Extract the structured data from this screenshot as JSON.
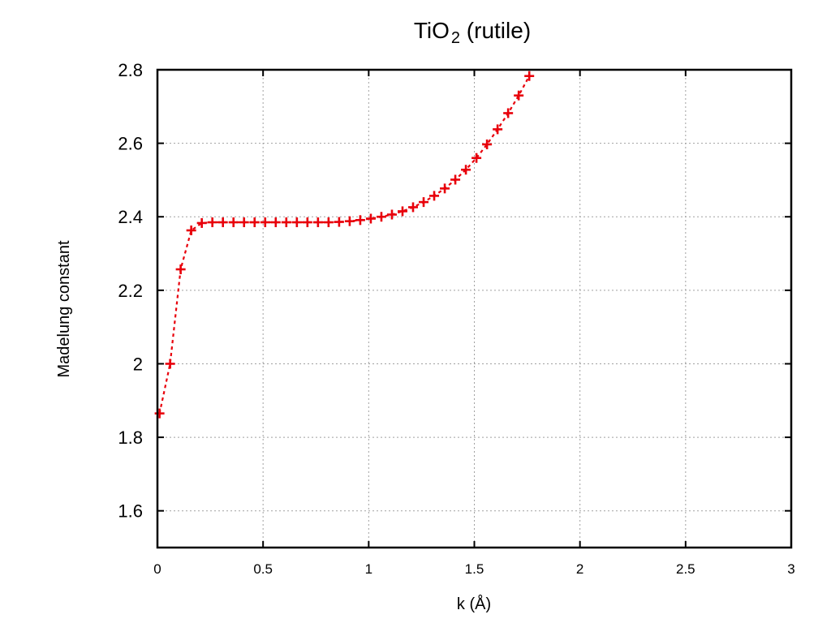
{
  "chart_data": {
    "type": "line",
    "title": {
      "main": "TiO",
      "subscript": "2",
      "suffix": " (rutile)"
    },
    "xlabel": "k (Å)",
    "ylabel": "Madelung constant",
    "xlim": [
      0,
      3
    ],
    "ylim": [
      1.5,
      2.8
    ],
    "xticks": [
      0,
      0.5,
      1,
      1.5,
      2,
      2.5,
      3
    ],
    "xtick_labels": [
      "0",
      "0.5",
      "1",
      "1.5",
      "2",
      "2.5",
      "3"
    ],
    "yticks": [
      1.6,
      1.8,
      2.0,
      2.2,
      2.4,
      2.6,
      2.8
    ],
    "ytick_labels": [
      "1.6",
      "1.8",
      "2",
      "2.2",
      "2.4",
      "2.6",
      "2.8"
    ],
    "grid": true,
    "series_color": "#e8000b",
    "series": [
      {
        "marker": "plus",
        "line_style": "dashed",
        "x": [
          0.01,
          0.06,
          0.11,
          0.16,
          0.21,
          0.26,
          0.31,
          0.36,
          0.41,
          0.46,
          0.51,
          0.56,
          0.61,
          0.66,
          0.71,
          0.76,
          0.81,
          0.86,
          0.91,
          0.96,
          1.01,
          1.06,
          1.11,
          1.16,
          1.21,
          1.26,
          1.31,
          1.36,
          1.41,
          1.46,
          1.51,
          1.56,
          1.61,
          1.66,
          1.71,
          1.76
        ],
        "y": [
          1.865,
          2.0,
          2.257,
          2.363,
          2.383,
          2.385,
          2.385,
          2.385,
          2.385,
          2.385,
          2.385,
          2.385,
          2.385,
          2.385,
          2.385,
          2.385,
          2.385,
          2.386,
          2.388,
          2.391,
          2.395,
          2.4,
          2.406,
          2.415,
          2.426,
          2.44,
          2.457,
          2.477,
          2.501,
          2.528,
          2.56,
          2.597,
          2.638,
          2.682,
          2.73,
          2.783
        ]
      }
    ]
  }
}
